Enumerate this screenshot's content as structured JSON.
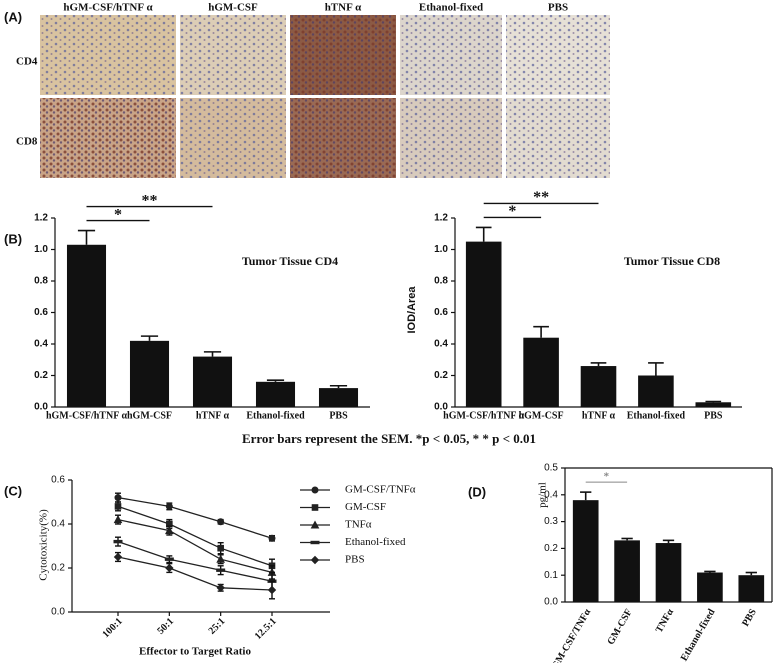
{
  "panel_labels": [
    "(A)",
    "(B)",
    "(C)",
    "(D)"
  ],
  "figure_a": {
    "columns": [
      "hGM-CSF/hTNF α",
      "hGM-CSF",
      "hTNF α",
      "Ethanol-fixed",
      "PBS"
    ],
    "rows": [
      "CD4",
      "CD8"
    ]
  },
  "caption": "Error bars represent  the SEM. *p < 0.05, * * p < 0.01",
  "chart_data": [
    {
      "type": "bar",
      "title": "Tumor Tissue  CD4",
      "categories": [
        "hGM-CSF/hTNF α",
        "hGM-CSF",
        "hTNF α",
        "Ethanol-fixed",
        "PBS"
      ],
      "values": [
        1.03,
        0.42,
        0.32,
        0.16,
        0.12
      ],
      "errors": [
        0.09,
        0.03,
        0.03,
        0.01,
        0.015
      ],
      "color": "#111111",
      "ylim": [
        0,
        1.2
      ],
      "yticks": [
        {
          "value": 0,
          "label": "0.0"
        },
        0.2,
        0.4,
        0.6,
        0.8,
        {
          "value": 1,
          "label": "1.0"
        },
        1.2
      ],
      "significance": [
        "*",
        "**"
      ]
    },
    {
      "type": "bar",
      "title": "Tumor Tissue  CD8",
      "y_label": "IOD/Area",
      "categories": [
        "hGM-CSF/hTNF α",
        "hGM-CSF",
        "hTNF α",
        "Ethanol-fixed",
        "PBS"
      ],
      "values": [
        1.05,
        0.44,
        0.26,
        0.2,
        0.03
      ],
      "errors": [
        0.09,
        0.07,
        0.02,
        0.08,
        0.005
      ],
      "color": "#111111",
      "ylim": [
        0,
        1.2
      ],
      "yticks": [
        {
          "value": 0,
          "label": "0.0"
        },
        0.2,
        0.4,
        0.6,
        0.8,
        {
          "value": 1,
          "label": "1.0"
        },
        1.2
      ],
      "significance": [
        "*",
        "**"
      ]
    },
    {
      "type": "line",
      "x_label": "Effector to Target Ratio",
      "y_label": "Cytotoxicity(%)",
      "categories": [
        "100:1",
        "50:1",
        "25:1",
        "12.5:1"
      ],
      "ylim": [
        0,
        0.6
      ],
      "yticks": [
        {
          "value": 0,
          "label": "0.0"
        },
        0.2,
        0.4,
        0.6
      ],
      "series": [
        {
          "name": "GM-CSF/TNFα",
          "color": "#222222",
          "marker": "circle",
          "values": [
            0.52,
            0.48,
            0.41,
            0.335
          ],
          "errors": [
            0.02,
            0.015,
            0.01,
            0.012
          ]
        },
        {
          "name": "GM-CSF",
          "color": "#222222",
          "marker": "square",
          "values": [
            0.48,
            0.4,
            0.29,
            0.21
          ],
          "errors": [
            0.02,
            0.02,
            0.025,
            0.03
          ]
        },
        {
          "name": "TNFα",
          "color": "#222222",
          "marker": "triangle",
          "values": [
            0.42,
            0.37,
            0.24,
            0.18
          ],
          "errors": [
            0.02,
            0.02,
            0.02,
            0.03
          ]
        },
        {
          "name": "Ethanol-fixed",
          "color": "#222222",
          "marker": "dash",
          "values": [
            0.32,
            0.24,
            0.19,
            0.14
          ],
          "errors": [
            0.02,
            0.015,
            0.02,
            0.04
          ]
        },
        {
          "name": "PBS",
          "color": "#222222",
          "marker": "diamond",
          "values": [
            0.25,
            0.2,
            0.11,
            0.1
          ],
          "errors": [
            0.02,
            0.02,
            0.015,
            0.04
          ]
        }
      ]
    },
    {
      "type": "bar",
      "y_label": "pg/ml",
      "categories": [
        "GM-CSF/TNFα",
        "GM-CSF",
        "TNFα",
        "Ethanol-fixed",
        "PBS"
      ],
      "values": [
        0.38,
        0.23,
        0.22,
        0.11,
        0.1
      ],
      "errors": [
        0.03,
        0.007,
        0.01,
        0.004,
        0.01
      ],
      "color": "#111111",
      "ylim": [
        0,
        0.5
      ],
      "yticks": [
        {
          "value": 0,
          "label": "0.0"
        },
        0.1,
        0.2,
        0.3,
        0.4,
        0.5
      ],
      "significance": [
        "*"
      ],
      "frame": true
    }
  ]
}
